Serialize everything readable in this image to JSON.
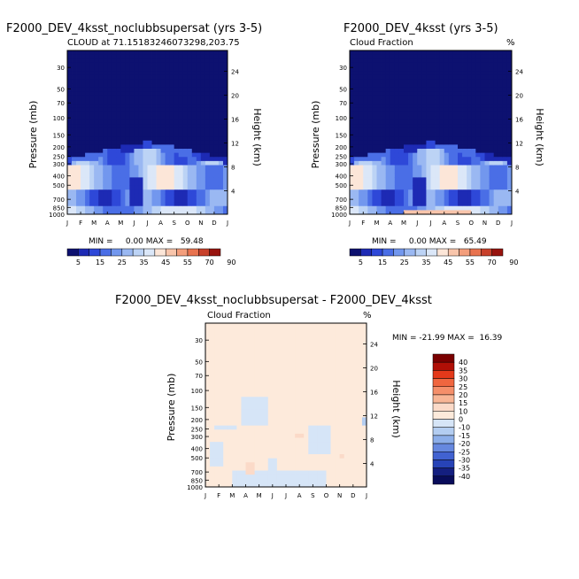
{
  "chart_data": [
    {
      "type": "contour",
      "title": "F2000_DEV_4ksst_noclubbsupersat (yrs 3-5)",
      "subtitle": "CLOUD at 71.15183246073298,203.75",
      "units": "",
      "xlabel": "",
      "ylabel": "Pressure (mb)",
      "ylabel_right": "Height (km)",
      "x_ticks": [
        "J",
        "F",
        "M",
        "A",
        "M",
        "J",
        "J",
        "A",
        "S",
        "O",
        "N",
        "D",
        "J"
      ],
      "y_ticks": [
        "30",
        "50",
        "70",
        "100",
        "150",
        "200",
        "250",
        "300",
        "400",
        "500",
        "700",
        "850",
        "1000"
      ],
      "y_ticks_right": [
        "24",
        "20",
        "16",
        "12",
        "8",
        "4"
      ],
      "ylim": [
        1000,
        20
      ],
      "stats": "MIN =     0.00 MAX =   59.48",
      "min": 0.0,
      "max": 59.48,
      "colorbar_labels": [
        "5",
        "15",
        "25",
        "35",
        "45",
        "55",
        "70",
        "90"
      ]
    },
    {
      "type": "contour",
      "title": "F2000_DEV_4ksst (yrs 3-5)",
      "subtitle": "Cloud Fraction",
      "units": "%",
      "xlabel": "",
      "ylabel": "Pressure (mb)",
      "ylabel_right": "Height (km)",
      "x_ticks": [
        "J",
        "F",
        "M",
        "A",
        "M",
        "J",
        "J",
        "A",
        "S",
        "O",
        "N",
        "D",
        "J"
      ],
      "y_ticks": [
        "30",
        "50",
        "70",
        "100",
        "150",
        "200",
        "250",
        "300",
        "400",
        "500",
        "700",
        "850",
        "1000"
      ],
      "y_ticks_right": [
        "24",
        "20",
        "16",
        "12",
        "8",
        "4"
      ],
      "ylim": [
        1000,
        20
      ],
      "stats": "MIN =     0.00 MAX =   65.49",
      "min": 0.0,
      "max": 65.49,
      "colorbar_labels": [
        "5",
        "15",
        "25",
        "35",
        "45",
        "55",
        "70",
        "90"
      ]
    },
    {
      "type": "contour",
      "title": "F2000_DEV_4ksst_noclubbsupersat - F2000_DEV_4ksst",
      "subtitle": "Cloud Fraction",
      "units": "%",
      "xlabel": "",
      "ylabel": "Pressure (mb)",
      "ylabel_right": "Height (km)",
      "x_ticks": [
        "J",
        "F",
        "M",
        "A",
        "M",
        "J",
        "J",
        "A",
        "S",
        "O",
        "N",
        "D",
        "J"
      ],
      "y_ticks": [
        "30",
        "50",
        "70",
        "100",
        "150",
        "200",
        "250",
        "300",
        "400",
        "500",
        "700",
        "850",
        "1000"
      ],
      "y_ticks_right": [
        "24",
        "20",
        "16",
        "12",
        "8",
        "4"
      ],
      "ylim": [
        1000,
        20
      ],
      "stats": "MIN = -21.99 MAX =  16.39",
      "min": -21.99,
      "max": 16.39,
      "colorbar_labels": [
        "40",
        "35",
        "30",
        "25",
        "20",
        "15",
        "10",
        "0",
        "-10",
        "-15",
        "-20",
        "-25",
        "-30",
        "-35",
        "-40"
      ]
    }
  ],
  "colors": {
    "seq": [
      "#0d1170",
      "#1d2ab4",
      "#2e48d8",
      "#4a6ee6",
      "#7297ee",
      "#9ab8f2",
      "#bcd3f5",
      "#dbe7f8",
      "#fce6d8",
      "#f8c5ab",
      "#f39e7c",
      "#e8734f",
      "#c8412b",
      "#98130e"
    ],
    "div": [
      "#7a0000",
      "#b00f06",
      "#e4391a",
      "#f0663f",
      "#f58f6a",
      "#f8b696",
      "#fbdac8",
      "#fdeadb",
      "#d6e5f7",
      "#b3cdf1",
      "#8caee9",
      "#6688df",
      "#4162d1",
      "#2743b7",
      "#141f80",
      "#080c5a"
    ]
  }
}
